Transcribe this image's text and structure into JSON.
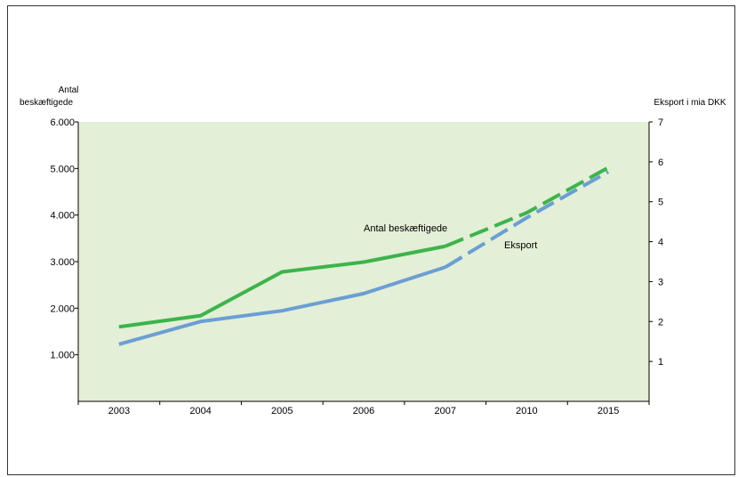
{
  "chart_data": {
    "type": "line",
    "categories": [
      "2003",
      "2004",
      "2005",
      "2006",
      "2007",
      "2010",
      "2015"
    ],
    "y_left": {
      "label_line1": "Antal",
      "label_line2": "beskæftigede",
      "range": [
        0,
        6000
      ],
      "ticks": [
        1000,
        2000,
        3000,
        4000,
        5000,
        6000
      ],
      "tick_labels": [
        "1.000",
        "2.000",
        "3.000",
        "4.000",
        "5.000",
        "6.000"
      ]
    },
    "y_right": {
      "label": "Eksport i mia DKK",
      "range": [
        0,
        7
      ],
      "ticks": [
        1,
        2,
        3,
        4,
        5,
        6,
        7
      ],
      "tick_labels": [
        "1",
        "2",
        "3",
        "4",
        "5",
        "6",
        "7"
      ]
    },
    "series": [
      {
        "name": "Antal beskæftigede",
        "axis": "left",
        "color": "#3cb44b",
        "values": [
          1600,
          1840,
          2780,
          2990,
          3330,
          4050,
          5020
        ],
        "projected_from_index": 4
      },
      {
        "name": "Eksport",
        "axis": "right",
        "color": "#6a9fd4",
        "values": [
          1.43,
          2.0,
          2.27,
          2.7,
          3.36,
          4.6,
          5.75
        ],
        "projected_from_index": 4
      }
    ],
    "plot_background": "#e3efd6",
    "grid": false,
    "legend": "inline labels"
  }
}
